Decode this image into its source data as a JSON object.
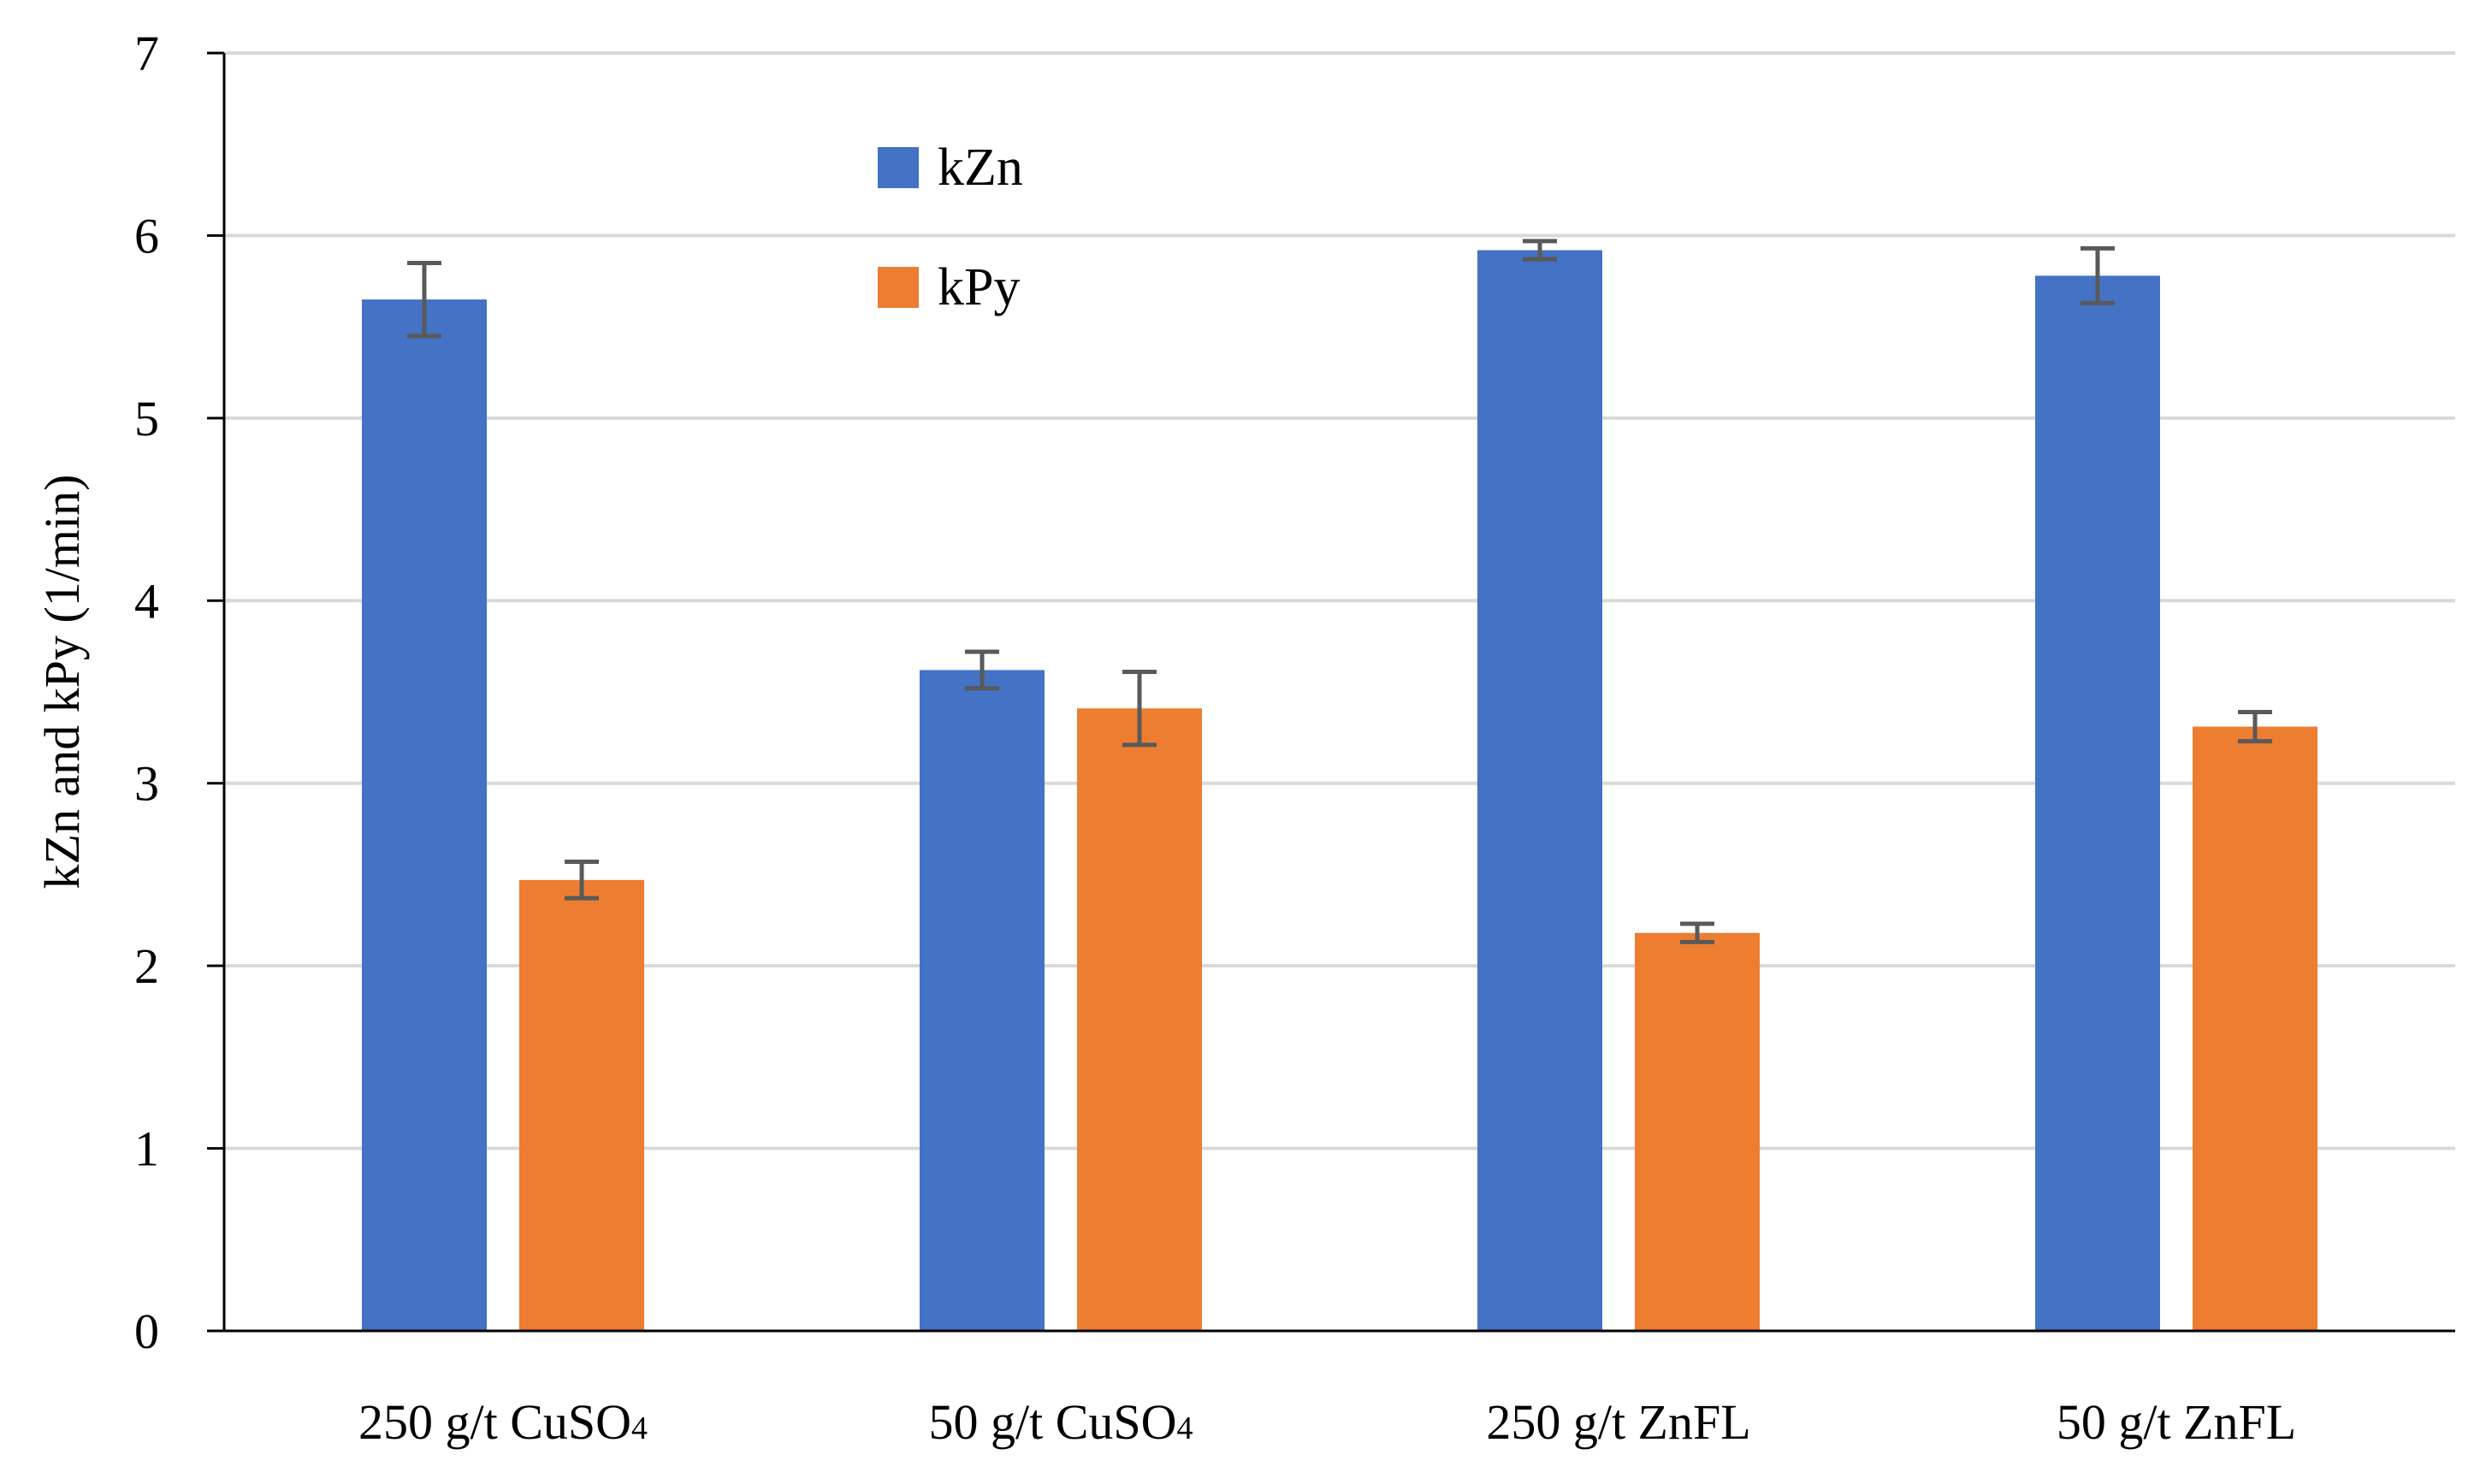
{
  "chart_data": {
    "type": "bar",
    "title": "",
    "xlabel": "",
    "ylabel": "kZn and kPy (1/min)",
    "ylim": [
      0,
      7
    ],
    "yticks": [
      "0",
      "1",
      "2",
      "3",
      "4",
      "5",
      "6",
      "7"
    ],
    "grid": true,
    "legend_position": "top-center",
    "categories": [
      {
        "main": "250 g/t CuSO",
        "sub": "4"
      },
      {
        "main": "50 g/t CuSO",
        "sub": "4"
      },
      {
        "main": "250 g/t ZnFL",
        "sub": ""
      },
      {
        "main": "50 g/t ZnFL",
        "sub": ""
      }
    ],
    "series": [
      {
        "name": "kZn",
        "color": "#4472C4",
        "values": [
          5.65,
          3.62,
          5.92,
          5.78
        ],
        "errors": [
          0.2,
          0.1,
          0.05,
          0.15
        ]
      },
      {
        "name": "kPy",
        "color": "#ED7D31",
        "values": [
          2.47,
          3.41,
          2.18,
          3.31
        ],
        "errors": [
          0.1,
          0.2,
          0.05,
          0.08
        ]
      }
    ],
    "error_bar_color": "#595959",
    "gridline_color": "#D9D9D9",
    "axis_color": "#000000"
  }
}
